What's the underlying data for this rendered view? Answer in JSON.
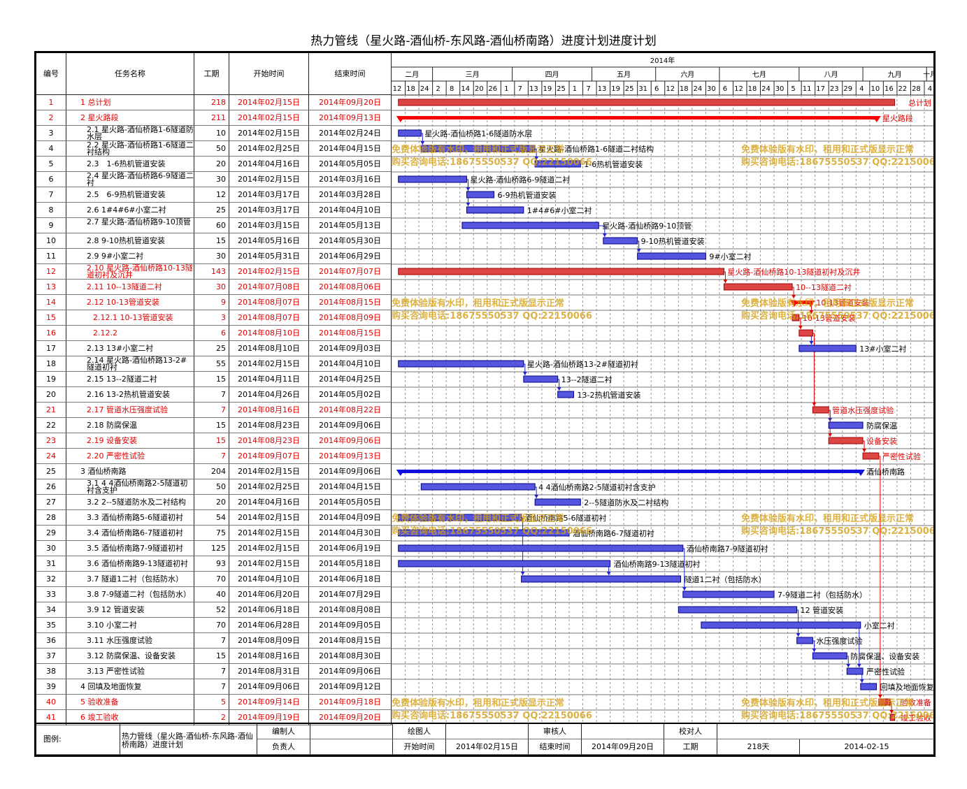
{
  "title": "热力管线（星火路-酒仙桥-东风路-酒仙桥南路）进度计划进度计划",
  "headers": {
    "num": "编号",
    "name": "任务名称",
    "dur": "工期",
    "start": "开始时间",
    "end": "结束时间",
    "year": "2014年"
  },
  "colors": {
    "red": "#e00000",
    "summary_red": "#ff0000",
    "blue_bar": "#3333cc",
    "blue_fill": "#5555dd",
    "red_bar": "#dd4444",
    "watermark": "#d4a017"
  },
  "chart_data": {
    "type": "gantt",
    "title": "热力管线（星火路-酒仙桥-东风路-酒仙桥南路）进度计划进度计划",
    "x_range": [
      "2014-02-12",
      "2014-10-08"
    ],
    "months": [
      {
        "label": "二月",
        "start": "2014-02-12"
      },
      {
        "label": "三月",
        "start": "2014-03-02"
      },
      {
        "label": "四月",
        "start": "2014-04-06"
      },
      {
        "label": "五月",
        "start": "2014-05-11"
      },
      {
        "label": "六月",
        "start": "2014-06-08"
      },
      {
        "label": "七月",
        "start": "2014-07-06"
      },
      {
        "label": "八月",
        "start": "2014-08-10"
      },
      {
        "label": "九月",
        "start": "2014-09-07"
      },
      {
        "label": "十月",
        "start": "2014-10-05"
      }
    ],
    "tick_dates": [
      "2014-02-12",
      "2014-02-18",
      "2014-02-24",
      "2014-03-02",
      "2014-03-08",
      "2014-03-14",
      "2014-03-20",
      "2014-03-26",
      "2014-04-01",
      "2014-04-07",
      "2014-04-13",
      "2014-04-19",
      "2014-04-25",
      "2014-05-01",
      "2014-05-07",
      "2014-05-13",
      "2014-05-19",
      "2014-05-25",
      "2014-05-31",
      "2014-06-06",
      "2014-06-12",
      "2014-06-18",
      "2014-06-24",
      "2014-06-30",
      "2014-07-06",
      "2014-07-12",
      "2014-07-18",
      "2014-07-24",
      "2014-07-30",
      "2014-08-05",
      "2014-08-11",
      "2014-08-17",
      "2014-08-23",
      "2014-08-29",
      "2014-09-04",
      "2014-09-10",
      "2014-09-16",
      "2014-09-22",
      "2014-09-28",
      "2014-10-04"
    ],
    "tick_labels": [
      "12",
      "18",
      "24",
      "2",
      "8",
      "14",
      "20",
      "26",
      "1",
      "7",
      "13",
      "19",
      "25",
      "1",
      "7",
      "13",
      "19",
      "25",
      "31",
      "6",
      "12",
      "18",
      "24",
      "30",
      "6",
      "12",
      "18",
      "24",
      "30",
      "5",
      "11",
      "17",
      "23",
      "29",
      "4",
      "10",
      "16",
      "22",
      "28",
      "4"
    ],
    "tasks": [
      {
        "id": "1",
        "name": "1 总计划",
        "dur": "218",
        "start": "2014年02月15日",
        "end": "2014年09月20日",
        "s": "2014-02-15",
        "e": "2014-09-20",
        "kind": "bar",
        "color": "red",
        "indent": 0,
        "label": "总计划"
      },
      {
        "id": "2",
        "name": "2 星火路段",
        "dur": "211",
        "start": "2014年02月15日",
        "end": "2014年09月13日",
        "s": "2014-02-15",
        "e": "2014-09-13",
        "kind": "summary",
        "color": "red",
        "indent": 0,
        "label": "星火路段"
      },
      {
        "id": "3",
        "name": "2.1 星火路-酒仙桥路1-6隧道防水层",
        "dur": "10",
        "start": "2014年02月15日",
        "end": "2014年02月24日",
        "s": "2014-02-15",
        "e": "2014-02-24",
        "kind": "bar",
        "color": "blue",
        "indent": 1,
        "label": "星火路-酒仙桥路1-6隧道防水层"
      },
      {
        "id": "4",
        "name": "2.2 星火路-酒仙桥路1-6隧道二衬结构",
        "dur": "50",
        "start": "2014年02月25日",
        "end": "2014年04月15日",
        "s": "2014-02-25",
        "e": "2014-04-15",
        "kind": "bar",
        "color": "blue",
        "indent": 1,
        "label": "星火路-酒仙桥路1-6隧道二衬结构"
      },
      {
        "id": "5",
        "name": "2.3　1-6热机管道安装",
        "dur": "20",
        "start": "2014年04月16日",
        "end": "2014年05月05日",
        "s": "2014-04-16",
        "e": "2014-05-05",
        "kind": "bar",
        "color": "blue",
        "indent": 1,
        "label": "1-6热机管道安装"
      },
      {
        "id": "6",
        "name": "2.4 星火路-酒仙桥路6-9隧道二衬",
        "dur": "30",
        "start": "2014年02月15日",
        "end": "2014年03月16日",
        "s": "2014-02-15",
        "e": "2014-03-16",
        "kind": "bar",
        "color": "blue",
        "indent": 1,
        "label": "星火路-酒仙桥路6-9隧道二衬"
      },
      {
        "id": "7",
        "name": "2.5　6-9热机管道安装",
        "dur": "12",
        "start": "2014年03月17日",
        "end": "2014年03月28日",
        "s": "2014-03-17",
        "e": "2014-03-28",
        "kind": "bar",
        "color": "blue",
        "indent": 1,
        "label": "6-9热机管道安装"
      },
      {
        "id": "8",
        "name": "2.6 1#4#6#小室二衬",
        "dur": "25",
        "start": "2014年03月17日",
        "end": "2014年04月10日",
        "s": "2014-03-17",
        "e": "2014-04-10",
        "kind": "bar",
        "color": "blue",
        "indent": 1,
        "label": "1#4#6#小室二衬"
      },
      {
        "id": "9",
        "name": "2.7 星火路-酒仙桥路9-10顶管",
        "dur": "60",
        "start": "2014年03月15日",
        "end": "2014年05月13日",
        "s": "2014-03-15",
        "e": "2014-05-13",
        "kind": "bar",
        "color": "blue",
        "indent": 1,
        "label": "星火路-酒仙桥路9-10顶管"
      },
      {
        "id": "10",
        "name": "2.8 9-10热机管道安装",
        "dur": "15",
        "start": "2014年05月16日",
        "end": "2014年05月30日",
        "s": "2014-05-16",
        "e": "2014-05-30",
        "kind": "bar",
        "color": "blue",
        "indent": 1,
        "label": "9-10热机管道安装"
      },
      {
        "id": "11",
        "name": "2.9 9#小室二衬",
        "dur": "30",
        "start": "2014年05月31日",
        "end": "2014年06月29日",
        "s": "2014-05-31",
        "e": "2014-06-29",
        "kind": "bar",
        "color": "blue",
        "indent": 1,
        "label": "9#小室二衬"
      },
      {
        "id": "12",
        "name": "2.10 星火路-酒仙桥路10-13隧道初衬及沉井",
        "dur": "143",
        "start": "2014年02月15日",
        "end": "2014年07月07日",
        "s": "2014-02-15",
        "e": "2014-07-07",
        "kind": "bar",
        "color": "red",
        "indent": 1,
        "label": "星火路-酒仙桥路10-13隧道初衬及沉井"
      },
      {
        "id": "13",
        "name": "2.11 10--13隧道二衬",
        "dur": "30",
        "start": "2014年07月08日",
        "end": "2014年08月06日",
        "s": "2014-07-08",
        "e": "2014-08-06",
        "kind": "bar",
        "color": "red",
        "indent": 1,
        "label": "10--13隧道二衬"
      },
      {
        "id": "14",
        "name": "2.12 10-13管道安装",
        "dur": "9",
        "start": "2014年08月07日",
        "end": "2014年08月15日",
        "s": "2014-08-07",
        "e": "2014-08-15",
        "kind": "summary",
        "color": "red",
        "indent": 1,
        "label": "10-13管道安装"
      },
      {
        "id": "15",
        "name": "2.12.1 10-13管道安装",
        "dur": "3",
        "start": "2014年08月07日",
        "end": "2014年08月09日",
        "s": "2014-08-07",
        "e": "2014-08-09",
        "kind": "bar",
        "color": "red",
        "indent": 2,
        "label": "10-13管道安装"
      },
      {
        "id": "16",
        "name": "2.12.2",
        "dur": "6",
        "start": "2014年08月10日",
        "end": "2014年08月15日",
        "s": "2014-08-10",
        "e": "2014-08-15",
        "kind": "bar",
        "color": "red",
        "indent": 2,
        "label": ""
      },
      {
        "id": "17",
        "name": "2.13 13#小室二衬",
        "dur": "25",
        "start": "2014年08月10日",
        "end": "2014年09月03日",
        "s": "2014-08-10",
        "e": "2014-09-03",
        "kind": "bar",
        "color": "blue",
        "indent": 1,
        "label": "13#小室二衬"
      },
      {
        "id": "18",
        "name": "2.14 星火路-酒仙桥路13-2#隧道初衬",
        "dur": "55",
        "start": "2014年02月15日",
        "end": "2014年04月10日",
        "s": "2014-02-15",
        "e": "2014-04-10",
        "kind": "bar",
        "color": "blue",
        "indent": 1,
        "label": "星火路-酒仙桥路13-2#隧道初衬"
      },
      {
        "id": "19",
        "name": "2.15 13--2隧道二衬",
        "dur": "15",
        "start": "2014年04月11日",
        "end": "2014年04月25日",
        "s": "2014-04-11",
        "e": "2014-04-25",
        "kind": "bar",
        "color": "blue",
        "indent": 1,
        "label": "13--2隧道二衬"
      },
      {
        "id": "20",
        "name": "2.16 13-2热机管道安装",
        "dur": "7",
        "start": "2014年04月26日",
        "end": "2014年05月02日",
        "s": "2014-04-26",
        "e": "2014-05-02",
        "kind": "bar",
        "color": "blue",
        "indent": 1,
        "label": "13-2热机管道安装"
      },
      {
        "id": "21",
        "name": "2.17 管道水压强度试验",
        "dur": "7",
        "start": "2014年08月16日",
        "end": "2014年08月22日",
        "s": "2014-08-16",
        "e": "2014-08-22",
        "kind": "bar",
        "color": "red",
        "indent": 1,
        "label": "管道水压强度试验"
      },
      {
        "id": "22",
        "name": "2.18 防腐保温",
        "dur": "15",
        "start": "2014年08月23日",
        "end": "2014年09月06日",
        "s": "2014-08-23",
        "e": "2014-09-06",
        "kind": "bar",
        "color": "blue",
        "indent": 1,
        "label": "防腐保温"
      },
      {
        "id": "23",
        "name": "2.19 设备安装",
        "dur": "15",
        "start": "2014年08月23日",
        "end": "2014年09月06日",
        "s": "2014-08-23",
        "e": "2014-09-06",
        "kind": "bar",
        "color": "red",
        "indent": 1,
        "label": "设备安装"
      },
      {
        "id": "24",
        "name": "2.20 严密性试验",
        "dur": "7",
        "start": "2014年09月07日",
        "end": "2014年09月13日",
        "s": "2014-09-07",
        "e": "2014-09-13",
        "kind": "bar",
        "color": "red",
        "indent": 1,
        "label": "严密性试验"
      },
      {
        "id": "25",
        "name": "3 酒仙桥南路",
        "dur": "204",
        "start": "2014年02月15日",
        "end": "2014年09月06日",
        "s": "2014-02-15",
        "e": "2014-09-06",
        "kind": "summary",
        "color": "blue",
        "indent": 0,
        "label": "酒仙桥南路"
      },
      {
        "id": "26",
        "name": "3.1 4 4酒仙桥南路2-5隧道初衬含支护",
        "dur": "50",
        "start": "2014年02月25日",
        "end": "2014年04月15日",
        "s": "2014-02-25",
        "e": "2014-04-15",
        "kind": "bar",
        "color": "blue",
        "indent": 1,
        "label": "4 4酒仙桥南路2-5隧道初衬含支护"
      },
      {
        "id": "27",
        "name": "3.2 2--5隧道防水及二衬结构",
        "dur": "20",
        "start": "2014年04月16日",
        "end": "2014年05月05日",
        "s": "2014-04-16",
        "e": "2014-05-05",
        "kind": "bar",
        "color": "blue",
        "indent": 1,
        "label": "2--5隧道防水及二衬结构"
      },
      {
        "id": "28",
        "name": "3.3 酒仙桥南路5-6隧道初衬",
        "dur": "54",
        "start": "2014年02月15日",
        "end": "2014年04月09日",
        "s": "2014-02-15",
        "e": "2014-04-09",
        "kind": "bar",
        "color": "blue",
        "indent": 1,
        "label": "酒仙桥南路5-6隧道初衬"
      },
      {
        "id": "29",
        "name": "3.4 酒仙桥南路6-7隧道初衬",
        "dur": "75",
        "start": "2014年02月15日",
        "end": "2014年04月30日",
        "s": "2014-02-15",
        "e": "2014-04-30",
        "kind": "bar",
        "color": "blue",
        "indent": 1,
        "label": "酒仙桥南路6-7隧道初衬"
      },
      {
        "id": "30",
        "name": "3.5 酒仙桥南路7-9隧道初衬",
        "dur": "125",
        "start": "2014年02月15日",
        "end": "2014年06月19日",
        "s": "2014-02-15",
        "e": "2014-06-19",
        "kind": "bar",
        "color": "blue",
        "indent": 1,
        "label": "酒仙桥南路7-9隧道初衬"
      },
      {
        "id": "31",
        "name": "3.6 酒仙桥南路9-13隧道初衬",
        "dur": "93",
        "start": "2014年02月15日",
        "end": "2014年05月18日",
        "s": "2014-02-15",
        "e": "2014-05-18",
        "kind": "bar",
        "color": "blue",
        "indent": 1,
        "label": "酒仙桥南路9-13隧道初衬"
      },
      {
        "id": "32",
        "name": "3.7 隧道1二衬（包括防水）",
        "dur": "70",
        "start": "2014年04月10日",
        "end": "2014年06月18日",
        "s": "2014-04-10",
        "e": "2014-06-18",
        "kind": "bar",
        "color": "blue",
        "indent": 1,
        "label": "隧道1二衬（包括防水）"
      },
      {
        "id": "33",
        "name": "3.8 7-9隧道二衬（包括防水）",
        "dur": "40",
        "start": "2014年06月20日",
        "end": "2014年07月29日",
        "s": "2014-06-20",
        "e": "2014-07-29",
        "kind": "bar",
        "color": "blue",
        "indent": 1,
        "label": "7-9隧道二衬（包括防水）"
      },
      {
        "id": "34",
        "name": "3.9 12 管道安装",
        "dur": "52",
        "start": "2014年06月18日",
        "end": "2014年08月08日",
        "s": "2014-06-18",
        "e": "2014-08-08",
        "kind": "bar",
        "color": "blue",
        "indent": 1,
        "label": "12 管道安装"
      },
      {
        "id": "35",
        "name": "3.10 小室二衬",
        "dur": "70",
        "start": "2014年06月28日",
        "end": "2014年09月05日",
        "s": "2014-06-28",
        "e": "2014-09-05",
        "kind": "bar",
        "color": "blue",
        "indent": 1,
        "label": "小室二衬"
      },
      {
        "id": "36",
        "name": "3.11 水压强度试验",
        "dur": "7",
        "start": "2014年08月09日",
        "end": "2014年08月15日",
        "s": "2014-08-09",
        "e": "2014-08-15",
        "kind": "bar",
        "color": "blue",
        "indent": 1,
        "label": "水压强度试验"
      },
      {
        "id": "37",
        "name": "3.12 防腐保温、设备安装",
        "dur": "15",
        "start": "2014年08月16日",
        "end": "2014年08月30日",
        "s": "2014-08-16",
        "e": "2014-08-30",
        "kind": "bar",
        "color": "blue",
        "indent": 1,
        "label": "防腐保温、设备安装"
      },
      {
        "id": "38",
        "name": "3.13 严密性试验",
        "dur": "7",
        "start": "2014年08月31日",
        "end": "2014年09月06日",
        "s": "2014-08-31",
        "e": "2014-09-06",
        "kind": "bar",
        "color": "blue",
        "indent": 1,
        "label": "严密性试验"
      },
      {
        "id": "39",
        "name": "4 回填及地面恢复",
        "dur": "7",
        "start": "2014年09月06日",
        "end": "2014年09月12日",
        "s": "2014-09-06",
        "e": "2014-09-12",
        "kind": "bar",
        "color": "blue",
        "indent": 0,
        "label": "回填及地面恢复"
      },
      {
        "id": "40",
        "name": "5 验收准备",
        "dur": "5",
        "start": "2014年09月14日",
        "end": "2014年09月18日",
        "s": "2014-09-14",
        "e": "2014-09-18",
        "kind": "bar",
        "color": "red",
        "indent": 0,
        "label": "验收准备"
      },
      {
        "id": "41",
        "name": "6 竣工验收",
        "dur": "2",
        "start": "2014年09月19日",
        "end": "2014年09月20日",
        "s": "2014-09-19",
        "e": "2014-09-20",
        "kind": "bar",
        "color": "red",
        "indent": 0,
        "label": "竣工验收"
      }
    ],
    "links": [
      [
        3,
        4
      ],
      [
        4,
        5
      ],
      [
        6,
        7
      ],
      [
        6,
        8
      ],
      [
        9,
        10
      ],
      [
        10,
        11
      ],
      [
        12,
        13
      ],
      [
        13,
        14
      ],
      [
        14,
        15
      ],
      [
        15,
        16
      ],
      [
        16,
        17
      ],
      [
        16,
        21
      ],
      [
        18,
        19
      ],
      [
        19,
        20
      ],
      [
        21,
        22
      ],
      [
        21,
        23
      ],
      [
        23,
        24
      ],
      [
        24,
        40
      ],
      [
        40,
        41
      ],
      [
        26,
        27
      ],
      [
        28,
        32
      ],
      [
        30,
        33
      ],
      [
        34,
        36
      ],
      [
        36,
        37
      ],
      [
        37,
        38
      ],
      [
        38,
        39
      ],
      [
        31,
        32
      ],
      [
        35,
        38
      ]
    ]
  },
  "watermark": {
    "line1": "免费体验版有水印，租用和正式版显示正常",
    "line2": "购买咨询电话:18675550537 QQ:22150066"
  },
  "footer": {
    "legend_label": "图例:",
    "project": "热力管线（星火路-酒仙桥-东风路-酒仙桥南路）进度计划",
    "editor_label": "编制人",
    "editor": "",
    "drawer_label": "绘图人",
    "drawer": "",
    "reviewer_label": "审核人",
    "reviewer": "",
    "checker_label": "校对人",
    "checker": "",
    "owner_label": "负责人",
    "owner": "",
    "start_label": "开始时间",
    "start": "2014年02月15日",
    "end_label": "结束时间",
    "end": "2014年09月20日",
    "dur_label": "工期",
    "dur": "218天",
    "date": "2014-02-15"
  }
}
